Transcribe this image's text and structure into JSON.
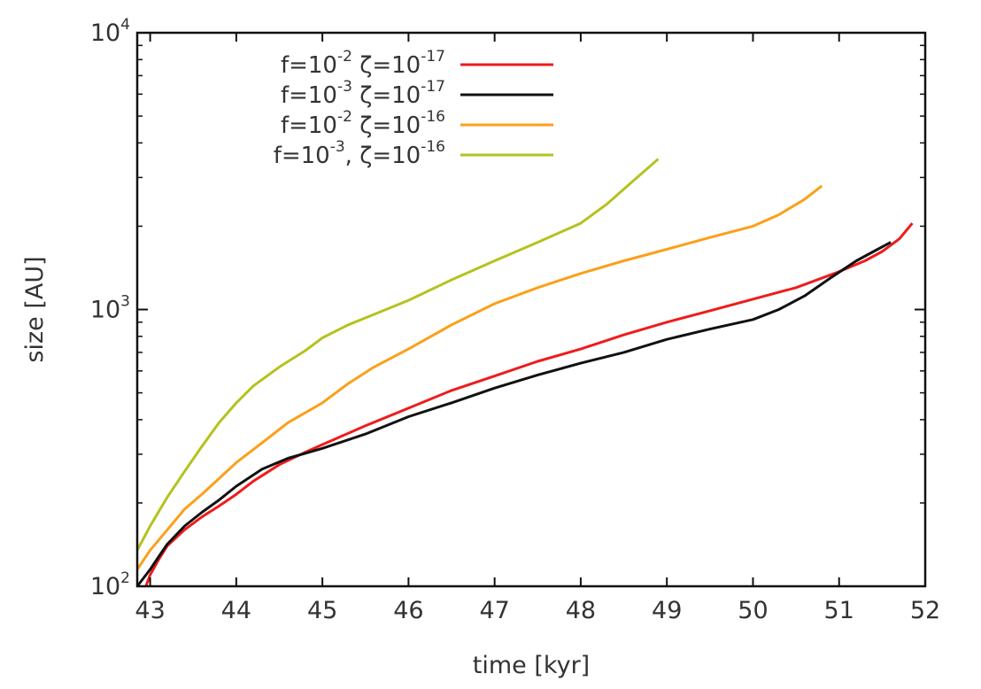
{
  "chart_data": {
    "type": "line",
    "title": "",
    "xlabel": "time [kyr]",
    "ylabel": "size [AU]",
    "xlim": [
      42.85,
      52
    ],
    "ylim": [
      100,
      10000
    ],
    "yscale": "log",
    "grid": false,
    "legend_position": "top-left",
    "x_ticks": [
      {
        "value": 43,
        "label": "43"
      },
      {
        "value": 44,
        "label": "44"
      },
      {
        "value": 45,
        "label": "45"
      },
      {
        "value": 46,
        "label": "46"
      },
      {
        "value": 47,
        "label": "47"
      },
      {
        "value": 48,
        "label": "48"
      },
      {
        "value": 49,
        "label": "49"
      },
      {
        "value": 50,
        "label": "50"
      },
      {
        "value": 51,
        "label": "51"
      },
      {
        "value": 52,
        "label": "52"
      }
    ],
    "y_ticks": [
      {
        "value": 100,
        "base": "10",
        "exp": "2"
      },
      {
        "value": 1000,
        "base": "10",
        "exp": "3"
      },
      {
        "value": 10000,
        "base": "10",
        "exp": "4"
      }
    ],
    "series": [
      {
        "name": "f=10-2 ζ=10-17",
        "legend_parts": [
          {
            "t": "f=10",
            "sup": "-2"
          },
          {
            "t": " ζ=10",
            "sup": "-17"
          }
        ],
        "color": "#ee1c1c",
        "x": [
          42.95,
          43.0,
          43.1,
          43.2,
          43.4,
          43.6,
          43.8,
          44.0,
          44.2,
          44.5,
          44.8,
          45.0,
          45.5,
          46.0,
          46.5,
          47.0,
          47.5,
          48.0,
          48.5,
          49.0,
          49.5,
          50.0,
          50.5,
          51.0,
          51.3,
          51.5,
          51.7,
          51.85
        ],
        "y": [
          100,
          110,
          125,
          140,
          160,
          178,
          195,
          215,
          240,
          275,
          305,
          325,
          380,
          440,
          510,
          575,
          650,
          720,
          810,
          900,
          990,
          1090,
          1200,
          1370,
          1500,
          1620,
          1800,
          2050
        ]
      },
      {
        "name": "f=10-3 ζ=10-17",
        "legend_parts": [
          {
            "t": "f=10",
            "sup": "-3"
          },
          {
            "t": " ζ=10",
            "sup": "-17"
          }
        ],
        "color": "#111111",
        "x": [
          42.85,
          43.0,
          43.1,
          43.2,
          43.4,
          43.6,
          43.8,
          44.0,
          44.3,
          44.6,
          45.0,
          45.5,
          46.0,
          46.5,
          47.0,
          47.5,
          48.0,
          48.5,
          49.0,
          49.5,
          50.0,
          50.3,
          50.6,
          50.9,
          51.2,
          51.4,
          51.6
        ],
        "y": [
          100,
          115,
          128,
          142,
          165,
          185,
          205,
          230,
          265,
          290,
          315,
          355,
          410,
          460,
          520,
          580,
          640,
          700,
          780,
          850,
          920,
          1000,
          1120,
          1300,
          1500,
          1620,
          1750
        ]
      },
      {
        "name": "f=10-2 ζ=10-16",
        "legend_parts": [
          {
            "t": "f=10",
            "sup": "-2"
          },
          {
            "t": " ζ=10",
            "sup": "-16"
          }
        ],
        "color": "#fba01a",
        "x": [
          42.85,
          43.0,
          43.2,
          43.4,
          43.6,
          43.8,
          44.0,
          44.3,
          44.6,
          45.0,
          45.3,
          45.6,
          46.0,
          46.5,
          47.0,
          47.5,
          48.0,
          48.5,
          49.0,
          49.5,
          50.0,
          50.3,
          50.6,
          50.8
        ],
        "y": [
          115,
          135,
          160,
          190,
          215,
          245,
          280,
          330,
          390,
          460,
          540,
          620,
          720,
          880,
          1050,
          1200,
          1350,
          1500,
          1650,
          1820,
          2000,
          2200,
          2500,
          2800
        ]
      },
      {
        "name": "f=10-3, ζ=10-16",
        "legend_parts": [
          {
            "t": "f=10",
            "sup": "-3"
          },
          {
            "t": ", ζ=10",
            "sup": "-16"
          }
        ],
        "color": "#b5c21f",
        "x": [
          42.85,
          43.0,
          43.2,
          43.4,
          43.6,
          43.8,
          44.0,
          44.2,
          44.5,
          44.8,
          45.0,
          45.3,
          45.6,
          46.0,
          46.5,
          47.0,
          47.5,
          48.0,
          48.3,
          48.6,
          48.9
        ],
        "y": [
          135,
          165,
          210,
          260,
          320,
          390,
          460,
          530,
          620,
          710,
          790,
          880,
          960,
          1080,
          1280,
          1500,
          1750,
          2050,
          2400,
          2900,
          3500
        ]
      }
    ]
  }
}
